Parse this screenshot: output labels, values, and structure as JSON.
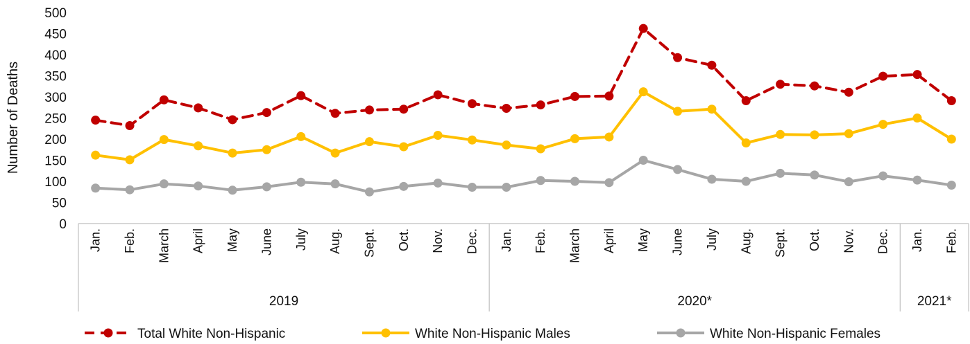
{
  "chart_data": {
    "type": "line",
    "title": "",
    "ylabel": "Number of Deaths",
    "xlabel": "",
    "ylim": [
      0,
      500
    ],
    "yticks": [
      0,
      50,
      100,
      150,
      200,
      250,
      300,
      350,
      400,
      450,
      500
    ],
    "grid": false,
    "legend_position": "bottom",
    "categories": [
      "Jan.",
      "Feb.",
      "March",
      "April",
      "May",
      "June",
      "July",
      "Aug.",
      "Sept.",
      "Oct.",
      "Nov.",
      "Dec.",
      "Jan.",
      "Feb.",
      "March",
      "April",
      "May",
      "June",
      "July",
      "Aug.",
      "Sept.",
      "Oct.",
      "Nov.",
      "Dec.",
      "Jan.",
      "Feb."
    ],
    "year_groups": [
      {
        "label": "2019",
        "count": 12
      },
      {
        "label": "2020*",
        "count": 12
      },
      {
        "label": "2021*",
        "count": 2
      }
    ],
    "series": [
      {
        "name": "Total White Non-Hispanic",
        "color": "#c00000",
        "dashed": true,
        "values": [
          245,
          232,
          293,
          274,
          246,
          263,
          303,
          261,
          269,
          271,
          305,
          284,
          273,
          281,
          301,
          302,
          462,
          393,
          375,
          291,
          330,
          326,
          311,
          349,
          353,
          291
        ]
      },
      {
        "name": "White Non-Hispanic Males",
        "color": "#ffc000",
        "dashed": false,
        "values": [
          162,
          151,
          199,
          184,
          167,
          175,
          206,
          167,
          194,
          182,
          209,
          198,
          186,
          177,
          201,
          205,
          312,
          266,
          271,
          191,
          211,
          210,
          213,
          235,
          250,
          200
        ]
      },
      {
        "name": "White Non-Hispanic Females",
        "color": "#a6a6a6",
        "dashed": false,
        "values": [
          84,
          80,
          94,
          89,
          79,
          87,
          98,
          94,
          75,
          88,
          96,
          86,
          86,
          102,
          100,
          97,
          150,
          128,
          105,
          100,
          119,
          115,
          99,
          113,
          103,
          91
        ]
      }
    ]
  }
}
